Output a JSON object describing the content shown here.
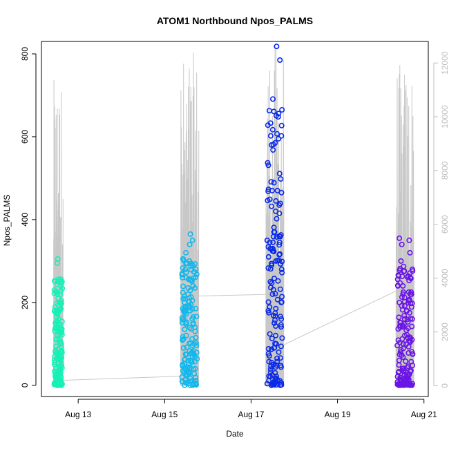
{
  "chart_data": {
    "type": "scatter",
    "title": "ATOM1 Northbound Npos_PALMS",
    "xlabel": "Date",
    "ylabel": "Npos_PALMS",
    "x_axis": {
      "unit": "days since Aug 12 00:00",
      "range": [
        0.15,
        9.1
      ],
      "ticks": [
        {
          "value": 1,
          "label": "Aug 13"
        },
        {
          "value": 3,
          "label": "Aug 15"
        },
        {
          "value": 5,
          "label": "Aug 17"
        },
        {
          "value": 7,
          "label": "Aug 19"
        },
        {
          "value": 9,
          "label": "Aug 21"
        }
      ]
    },
    "y_axis": {
      "range": [
        -27,
        830
      ],
      "ticks": [
        0,
        200,
        400,
        600,
        800
      ]
    },
    "y2_axis": {
      "range": [
        -400,
        12800
      ],
      "ticks": [
        0,
        2000,
        4000,
        6000,
        8000,
        10000,
        12000
      ],
      "color": "#bdbdbd"
    },
    "grid": false,
    "marker": "open-circle",
    "colors": {
      "line": "#c8c8c8",
      "aug12": "#17f0b7",
      "aug15": "#12b8ec",
      "aug17": "#0a2ae8",
      "aug20": "#6a14e6"
    },
    "clusters": [
      {
        "name": "Aug 12",
        "color": "#17f0b7",
        "x_center": 0.54,
        "x_width": 0.22,
        "y_max": 305,
        "line_max": 11400,
        "scatter": [
          0,
          5,
          12,
          20,
          35,
          45,
          55,
          60,
          65,
          70,
          80,
          100,
          120,
          140,
          150,
          160,
          165,
          180,
          200,
          210,
          220,
          240,
          250,
          255,
          295,
          305
        ]
      },
      {
        "name": "Aug 15",
        "color": "#12b8ec",
        "x_center": 3.58,
        "x_width": 0.42,
        "y_max": 365,
        "line_max": 12400,
        "scatter": [
          0,
          2,
          5,
          10,
          20,
          30,
          40,
          50,
          60,
          75,
          90,
          100,
          120,
          140,
          160,
          180,
          190,
          200,
          220,
          240,
          260,
          280,
          300,
          320,
          340,
          350,
          365
        ]
      },
      {
        "name": "Aug 17",
        "color": "#0a2ae8",
        "x_center": 5.55,
        "x_width": 0.42,
        "y_max": 818,
        "line_max": 12800,
        "scatter": [
          0,
          5,
          15,
          30,
          50,
          65,
          80,
          100,
          120,
          150,
          180,
          200,
          220,
          250,
          280,
          300,
          330,
          345,
          360,
          420,
          445,
          470,
          585,
          785,
          818
        ]
      },
      {
        "name": "Aug 20",
        "color": "#6a14e6",
        "x_center": 8.56,
        "x_width": 0.42,
        "y_max": 355,
        "line_max": 12000,
        "scatter": [
          0,
          3,
          8,
          15,
          25,
          40,
          60,
          80,
          100,
          120,
          140,
          160,
          180,
          200,
          220,
          240,
          260,
          280,
          300,
          320,
          340,
          350,
          355
        ]
      }
    ],
    "connector": [
      {
        "x": 0.6,
        "y": 12
      },
      {
        "x": 3.4,
        "y": 22
      },
      {
        "x": 3.6,
        "y": 215
      },
      {
        "x": 5.5,
        "y": 220
      },
      {
        "x": 5.6,
        "y": 90
      },
      {
        "x": 8.5,
        "y": 235
      }
    ]
  }
}
